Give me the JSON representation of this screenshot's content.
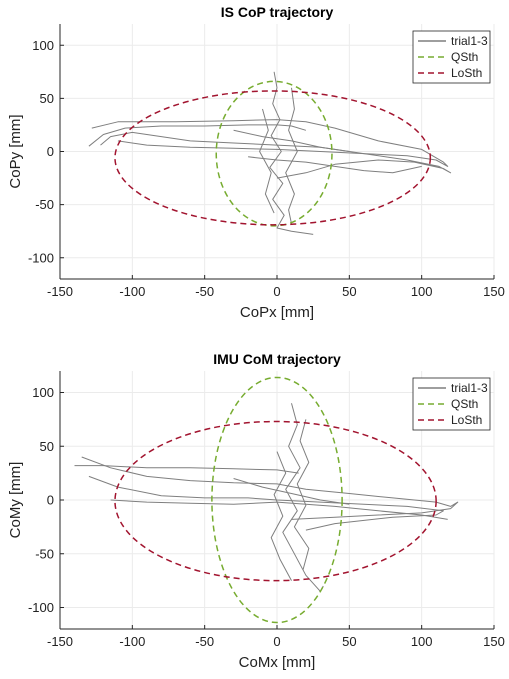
{
  "chart_data": [
    {
      "type": "line",
      "title": "IS CoP trajectory",
      "xlabel": "CoPx [mm]",
      "ylabel": "CoPy [mm]",
      "xlim": [
        -150,
        150
      ],
      "ylim": [
        -120,
        120
      ],
      "xticks": [
        -150,
        -100,
        -50,
        0,
        50,
        100,
        150
      ],
      "yticks": [
        -100,
        -50,
        0,
        50,
        100
      ],
      "grid": true,
      "legend": "top-right",
      "colors": {
        "trajectory": "#7f7f7f",
        "qsth": "#77ac30",
        "losth": "#a2142f"
      },
      "series": [
        {
          "name": "trial1-3",
          "style": "solid",
          "segments": [
            [
              [
                -130,
                5
              ],
              [
                -120,
                16
              ],
              [
                -105,
                22
              ],
              [
                -80,
                24
              ],
              [
                -50,
                24
              ],
              [
                -20,
                25
              ],
              [
                0,
                25
              ],
              [
                10,
                24
              ],
              [
                20,
                20
              ]
            ],
            [
              [
                -128,
                22
              ],
              [
                -110,
                28
              ],
              [
                -70,
                28
              ],
              [
                -30,
                29
              ],
              [
                0,
                30
              ],
              [
                20,
                28
              ],
              [
                40,
                22
              ],
              [
                70,
                10
              ],
              [
                100,
                2
              ],
              [
                115,
                -10
              ],
              [
                118,
                -14
              ],
              [
                110,
                -8
              ],
              [
                90,
                -4
              ],
              [
                60,
                -2
              ],
              [
                30,
                4
              ],
              [
                0,
                6
              ],
              [
                -30,
                8
              ],
              [
                -60,
                10
              ],
              [
                -80,
                14
              ],
              [
                -100,
                18
              ],
              [
                -115,
                14
              ],
              [
                -122,
                6
              ]
            ],
            [
              [
                -110,
                10
              ],
              [
                -90,
                6
              ],
              [
                -60,
                4
              ],
              [
                -30,
                3
              ],
              [
                0,
                2
              ],
              [
                30,
                0
              ],
              [
                60,
                -2
              ],
              [
                90,
                -8
              ],
              [
                112,
                -14
              ],
              [
                120,
                -20
              ],
              [
                115,
                -16
              ],
              [
                95,
                -10
              ],
              [
                70,
                -8
              ],
              [
                40,
                -12
              ],
              [
                20,
                -20
              ],
              [
                0,
                -25
              ]
            ],
            [
              [
                -2,
                75
              ],
              [
                0,
                60
              ],
              [
                -3,
                45
              ],
              [
                2,
                30
              ],
              [
                -4,
                15
              ],
              [
                3,
                0
              ],
              [
                -5,
                -15
              ],
              [
                4,
                -30
              ],
              [
                -3,
                -45
              ],
              [
                5,
                -60
              ],
              [
                0,
                -72
              ],
              [
                10,
                -75
              ],
              [
                25,
                -78
              ]
            ],
            [
              [
                10,
                60
              ],
              [
                12,
                40
              ],
              [
                8,
                20
              ],
              [
                14,
                0
              ],
              [
                6,
                -20
              ],
              [
                12,
                -40
              ],
              [
                8,
                -55
              ],
              [
                10,
                -68
              ]
            ],
            [
              [
                -10,
                40
              ],
              [
                -6,
                20
              ],
              [
                -12,
                0
              ],
              [
                -4,
                -20
              ],
              [
                -8,
                -40
              ],
              [
                -2,
                -58
              ]
            ],
            [
              [
                -30,
                20
              ],
              [
                -10,
                14
              ],
              [
                10,
                10
              ],
              [
                30,
                4
              ],
              [
                50,
                0
              ]
            ],
            [
              [
                -20,
                -5
              ],
              [
                0,
                -8
              ],
              [
                20,
                -10
              ],
              [
                40,
                -14
              ],
              [
                60,
                -18
              ],
              [
                80,
                -20
              ],
              [
                100,
                -14
              ]
            ]
          ]
        },
        {
          "name": "QSth",
          "style": "dashed",
          "ellipse": {
            "cx": -2,
            "cy": -2,
            "rx": 40,
            "ry": 68
          }
        },
        {
          "name": "LoSth",
          "style": "dashed",
          "ellipse": {
            "cx": -3,
            "cy": -6,
            "rx": 109,
            "ry": 63
          }
        }
      ]
    },
    {
      "type": "line",
      "title": "IMU CoM trajectory",
      "xlabel": "CoMx [mm]",
      "ylabel": "CoMy [mm]",
      "xlim": [
        -150,
        150
      ],
      "ylim": [
        -120,
        120
      ],
      "xticks": [
        -150,
        -100,
        -50,
        0,
        50,
        100,
        150
      ],
      "yticks": [
        -100,
        -50,
        0,
        50,
        100
      ],
      "grid": true,
      "legend": "top-right",
      "colors": {
        "trajectory": "#7f7f7f",
        "qsth": "#77ac30",
        "losth": "#a2142f"
      },
      "series": [
        {
          "name": "trial1-3",
          "style": "solid",
          "segments": [
            [
              [
                -140,
                32
              ],
              [
                -120,
                32
              ],
              [
                -90,
                30
              ],
              [
                -60,
                30
              ],
              [
                -30,
                29
              ],
              [
                0,
                28
              ],
              [
                15,
                25
              ]
            ],
            [
              [
                -135,
                40
              ],
              [
                -115,
                30
              ],
              [
                -90,
                22
              ],
              [
                -60,
                18
              ],
              [
                -30,
                16
              ],
              [
                0,
                15
              ],
              [
                20,
                10
              ],
              [
                50,
                6
              ],
              [
                80,
                2
              ],
              [
                110,
                -2
              ],
              [
                120,
                -6
              ],
              [
                125,
                -2
              ],
              [
                120,
                -8
              ],
              [
                100,
                -12
              ],
              [
                70,
                -14
              ],
              [
                40,
                -16
              ],
              [
                10,
                -18
              ]
            ],
            [
              [
                -130,
                22
              ],
              [
                -110,
                12
              ],
              [
                -80,
                4
              ],
              [
                -50,
                2
              ],
              [
                -20,
                2
              ],
              [
                0,
                0
              ],
              [
                30,
                -2
              ],
              [
                60,
                -4
              ],
              [
                90,
                -6
              ],
              [
                115,
                -10
              ],
              [
                110,
                -14
              ],
              [
                80,
                -16
              ],
              [
                40,
                -22
              ],
              [
                20,
                -28
              ]
            ],
            [
              [
                -115,
                0
              ],
              [
                -90,
                -2
              ],
              [
                -60,
                -3
              ],
              [
                -30,
                -4
              ],
              [
                0,
                -2
              ],
              [
                40,
                -6
              ],
              [
                70,
                -10
              ],
              [
                100,
                -14
              ],
              [
                118,
                -18
              ]
            ],
            [
              [
                10,
                90
              ],
              [
                14,
                70
              ],
              [
                8,
                50
              ],
              [
                16,
                30
              ],
              [
                6,
                10
              ],
              [
                14,
                -10
              ],
              [
                4,
                -30
              ],
              [
                12,
                -50
              ],
              [
                20,
                -70
              ],
              [
                30,
                -85
              ],
              [
                32,
                -80
              ]
            ],
            [
              [
                20,
                75
              ],
              [
                16,
                55
              ],
              [
                22,
                35
              ],
              [
                14,
                15
              ],
              [
                20,
                -5
              ],
              [
                12,
                -25
              ],
              [
                22,
                -45
              ],
              [
                18,
                -65
              ]
            ],
            [
              [
                0,
                45
              ],
              [
                6,
                25
              ],
              [
                -2,
                5
              ],
              [
                4,
                -15
              ],
              [
                -4,
                -35
              ],
              [
                2,
                -55
              ],
              [
                10,
                -75
              ]
            ],
            [
              [
                -30,
                20
              ],
              [
                -10,
                12
              ],
              [
                10,
                6
              ],
              [
                30,
                0
              ],
              [
                50,
                -4
              ]
            ]
          ]
        },
        {
          "name": "QSth",
          "style": "dashed",
          "ellipse": {
            "cx": 0,
            "cy": 0,
            "rx": 45,
            "ry": 114
          }
        },
        {
          "name": "LoSth",
          "style": "dashed",
          "ellipse": {
            "cx": -1,
            "cy": -1,
            "rx": 111,
            "ry": 74
          }
        }
      ]
    }
  ]
}
